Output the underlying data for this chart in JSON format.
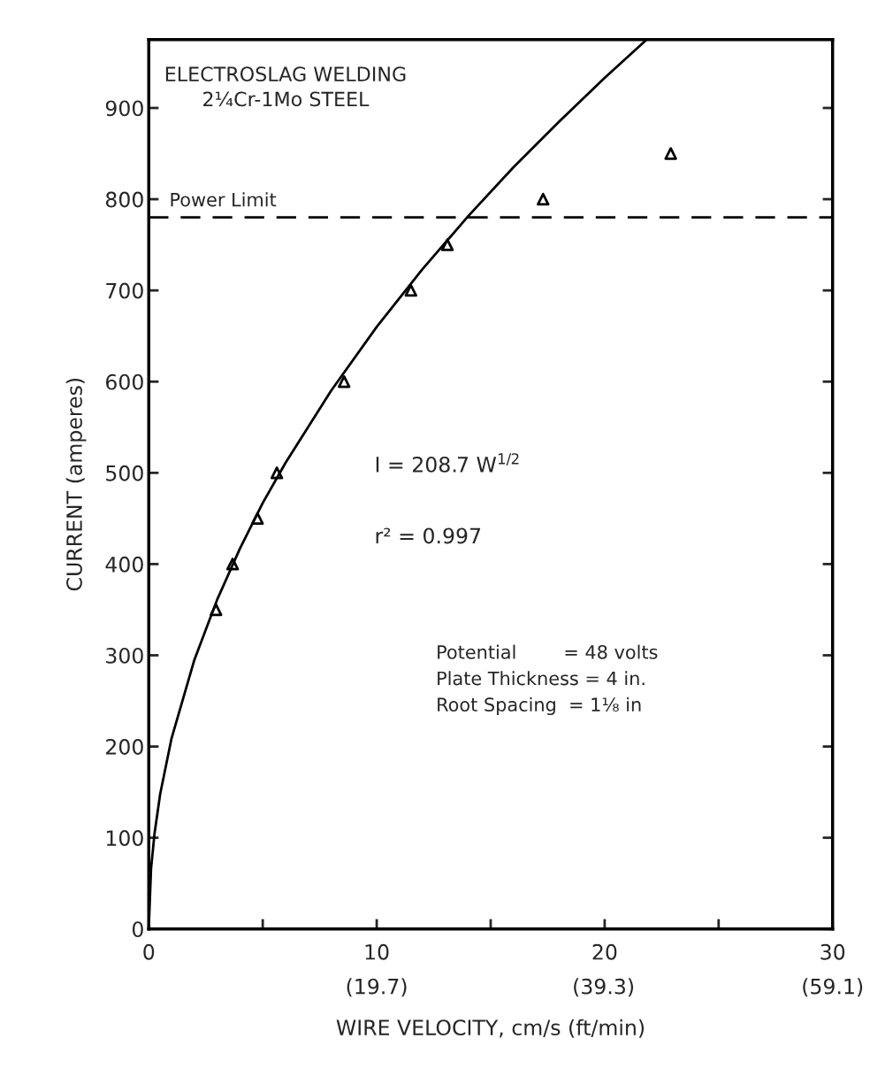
{
  "chart_data": {
    "type": "scatter",
    "title": "ELECTROSLAG WELDING\n2¼Cr-1Mo STEEL",
    "xlabel": "WIRE VELOCITY, cm/s (ft/min)",
    "ylabel": "CURRENT (amperes)",
    "series": [
      {
        "color": "#000000",
        "marker": "triangle",
        "x": [
          2.95,
          3.68,
          4.77,
          5.62,
          8.57,
          11.5,
          13.1,
          17.3,
          22.9
        ],
        "values": [
          350,
          400,
          450,
          500,
          600,
          700,
          750,
          800,
          850
        ]
      },
      {
        "type": "line",
        "color": "#000000",
        "marker": "none",
        "line_style": "solid",
        "x": [
          0,
          0.1,
          0.25,
          0.5,
          1,
          2,
          3,
          4,
          5,
          6,
          8,
          10,
          12,
          14,
          16,
          18,
          20,
          21.8
        ],
        "values": [
          0,
          66,
          104,
          148,
          209,
          295,
          361,
          417,
          467,
          511,
          590,
          660,
          723,
          781,
          835,
          885,
          933,
          974
        ]
      }
    ],
    "xlim": [
      0,
      30
    ],
    "ylim": [
      0,
      975
    ],
    "xticks": [
      0,
      {
        "value": 5,
        "label": null
      },
      10,
      {
        "value": 15,
        "label": null
      },
      20,
      {
        "value": 25,
        "label": null
      },
      30
    ],
    "x2lim": [
      0,
      59.1
    ],
    "x2ticks": [
      {
        "value": 19.7,
        "label": "(19.7)"
      },
      {
        "value": 39.3,
        "label": "(39.3)"
      },
      {
        "value": 59.1,
        "label": "(59.1)"
      }
    ],
    "yticks": [
      0,
      100,
      200,
      300,
      400,
      500,
      600,
      700,
      800,
      900
    ],
    "ref_lines": [
      {
        "axis": "y",
        "value": 780,
        "label": "Power Limit",
        "color": "#000000",
        "line_style": "dashed"
      }
    ],
    "annotations": [
      "I = 208.7 W$^{1/2}$",
      "r² = 0.997",
      "Potential        = 48 volts\nPlate Thickness = 4 in.\nRoot Spacing  = 1⅛ in"
    ],
    "grid": false,
    "legend": false
  }
}
